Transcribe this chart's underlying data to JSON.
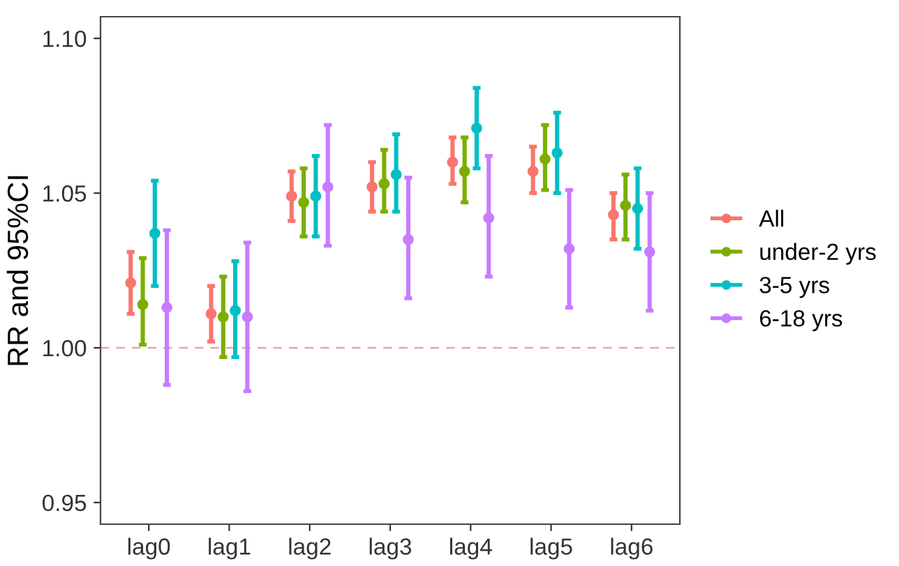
{
  "chart_data": {
    "type": "scatter",
    "ylabel": "RR and 95%CI",
    "categories": [
      "lag0",
      "lag1",
      "lag2",
      "lag3",
      "lag4",
      "lag5",
      "lag6"
    ],
    "series": [
      {
        "name": "All",
        "color": "#f8766d",
        "values": [
          1.021,
          1.011,
          1.049,
          1.052,
          1.06,
          1.057,
          1.043
        ],
        "errors": [
          [
            1.011,
            1.031
          ],
          [
            1.002,
            1.02
          ],
          [
            1.041,
            1.057
          ],
          [
            1.044,
            1.06
          ],
          [
            1.053,
            1.068
          ],
          [
            1.05,
            1.065
          ],
          [
            1.035,
            1.05
          ]
        ]
      },
      {
        "name": "under-2 yrs",
        "color": "#7cae00",
        "values": [
          1.014,
          1.01,
          1.047,
          1.053,
          1.057,
          1.061,
          1.046
        ],
        "errors": [
          [
            1.001,
            1.029
          ],
          [
            0.997,
            1.023
          ],
          [
            1.036,
            1.058
          ],
          [
            1.044,
            1.064
          ],
          [
            1.047,
            1.068
          ],
          [
            1.051,
            1.072
          ],
          [
            1.035,
            1.056
          ]
        ]
      },
      {
        "name": "3-5 yrs",
        "color": "#00bfc4",
        "values": [
          1.037,
          1.012,
          1.049,
          1.056,
          1.071,
          1.063,
          1.045
        ],
        "errors": [
          [
            1.02,
            1.054
          ],
          [
            0.997,
            1.028
          ],
          [
            1.036,
            1.062
          ],
          [
            1.044,
            1.069
          ],
          [
            1.058,
            1.084
          ],
          [
            1.05,
            1.076
          ],
          [
            1.032,
            1.058
          ]
        ]
      },
      {
        "name": "6-18 yrs",
        "color": "#c77cff",
        "values": [
          1.013,
          1.01,
          1.052,
          1.035,
          1.042,
          1.032,
          1.031
        ],
        "errors": [
          [
            0.988,
            1.038
          ],
          [
            0.986,
            1.034
          ],
          [
            1.033,
            1.072
          ],
          [
            1.016,
            1.055
          ],
          [
            1.023,
            1.062
          ],
          [
            1.013,
            1.051
          ],
          [
            1.012,
            1.05
          ]
        ]
      }
    ],
    "ylim": [
      0.943,
      1.107
    ],
    "yticks": [
      0.95,
      {
        "value": 1.0,
        "label": "1.00"
      },
      1.05,
      {
        "value": 1.1,
        "label": "1.10"
      }
    ],
    "ref_lines": [
      {
        "axis": "y",
        "value": 1.0,
        "color": "#e0aaa6",
        "line_style": "dashed"
      }
    ],
    "grid": false,
    "legend": "right",
    "marker": "circle"
  }
}
